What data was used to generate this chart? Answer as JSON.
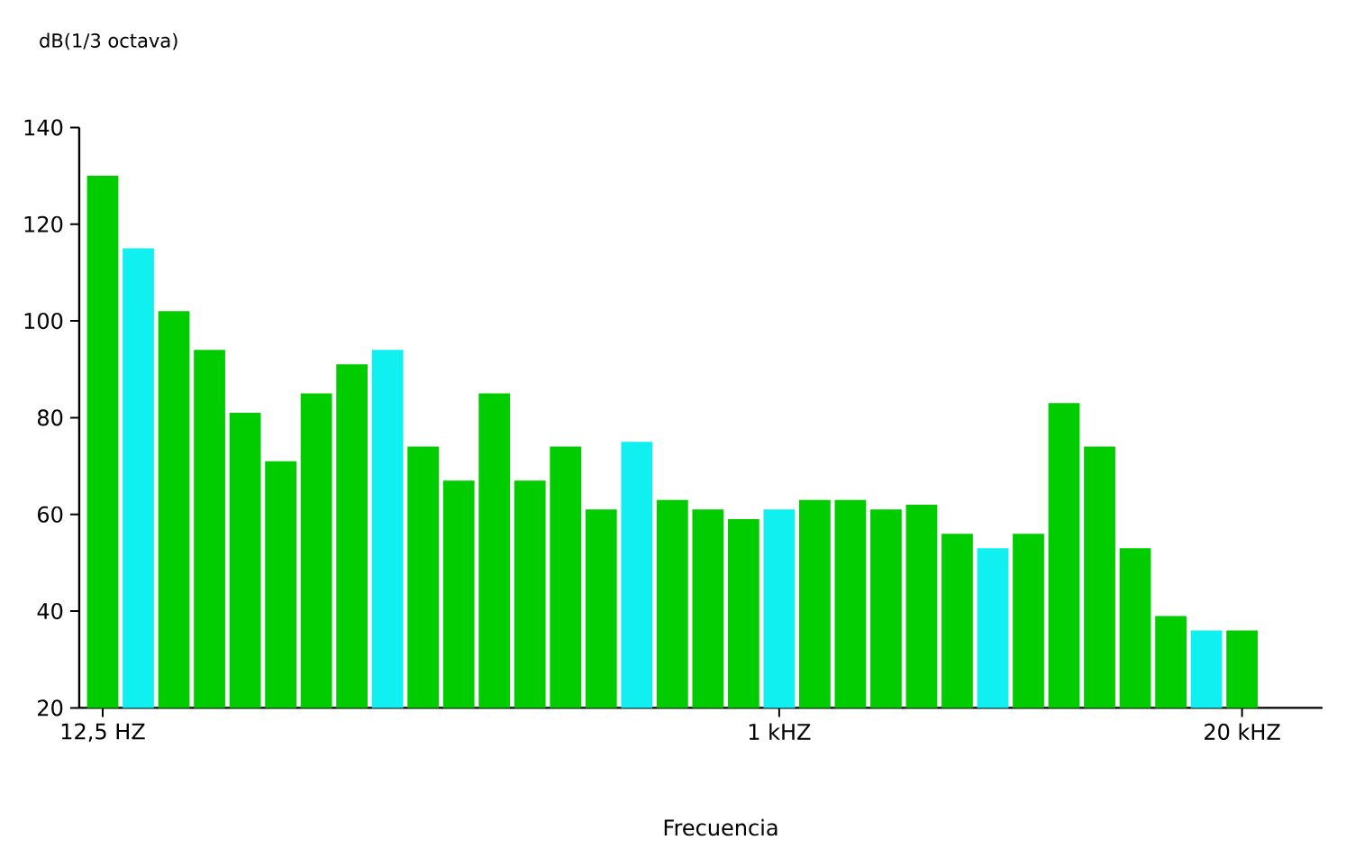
{
  "chart_data": {
    "type": "bar",
    "ylabel": "dB(1/3 octava)",
    "xlabel": "Frecuencia",
    "categories": [
      "12,5 HZ",
      null,
      null,
      null,
      null,
      null,
      null,
      null,
      null,
      null,
      null,
      null,
      null,
      null,
      null,
      null,
      null,
      null,
      null,
      "1 kHZ",
      null,
      null,
      null,
      null,
      null,
      null,
      null,
      null,
      null,
      null,
      null,
      null,
      "20 kHZ"
    ],
    "values": [
      130,
      115,
      102,
      94,
      81,
      71,
      85,
      91,
      94,
      74,
      67,
      85,
      67,
      74,
      61,
      75,
      63,
      61,
      59,
      61,
      63,
      63,
      61,
      62,
      56,
      53,
      56,
      83,
      74,
      53,
      39,
      36,
      36
    ],
    "colors": [
      "#00cc00",
      "#11f0f0",
      "#00cc00",
      "#00cc00",
      "#00cc00",
      "#00cc00",
      "#00cc00",
      "#00cc00",
      "#11f0f0",
      "#00cc00",
      "#00cc00",
      "#00cc00",
      "#00cc00",
      "#00cc00",
      "#00cc00",
      "#11f0f0",
      "#00cc00",
      "#00cc00",
      "#00cc00",
      "#11f0f0",
      "#00cc00",
      "#00cc00",
      "#00cc00",
      "#00cc00",
      "#00cc00",
      "#11f0f0",
      "#00cc00",
      "#00cc00",
      "#00cc00",
      "#00cc00",
      "#00cc00",
      "#11f0f0",
      "#00cc00"
    ],
    "ylim": [
      20,
      140
    ],
    "yticks": [
      20,
      40,
      60,
      80,
      100,
      120,
      140
    ]
  }
}
